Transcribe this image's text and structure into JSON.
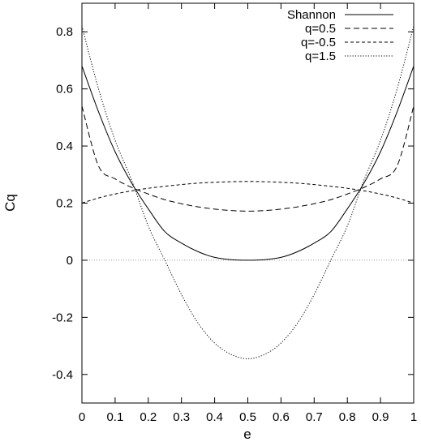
{
  "chart_data": {
    "type": "line",
    "title": "",
    "xlabel": "e",
    "ylabel": "Cq",
    "xlim": [
      0,
      1
    ],
    "ylim": [
      -0.5,
      0.9
    ],
    "xticks": [
      0,
      0.1,
      0.2,
      0.3,
      0.4,
      0.5,
      0.6,
      0.7,
      0.8,
      0.9,
      1
    ],
    "xtick_labels": [
      "0",
      "0.1",
      "0.2",
      "0.3",
      "0.4",
      "0.5",
      "0.6",
      "0.7",
      "0.8",
      "0.9",
      "1"
    ],
    "yticks": [
      -0.4,
      -0.2,
      0,
      0.2,
      0.4,
      0.6,
      0.8
    ],
    "ytick_labels": [
      "-0.4",
      "-0.2",
      "0",
      "0.2",
      "0.4",
      "0.6",
      "0.8"
    ],
    "grid": false,
    "legend_position": "top-right",
    "x": [
      0,
      0.05,
      0.1,
      0.15,
      0.2,
      0.25,
      0.3,
      0.35,
      0.4,
      0.45,
      0.5,
      0.55,
      0.6,
      0.65,
      0.7,
      0.75,
      0.8,
      0.85,
      0.9,
      0.95,
      1
    ],
    "series": [
      {
        "name": "Shannon",
        "style": "solid",
        "color": "#000000",
        "values": [
          0.68,
          0.52,
          0.38,
          0.27,
          0.18,
          0.1,
          0.06,
          0.03,
          0.01,
          0.002,
          0.0,
          0.002,
          0.01,
          0.03,
          0.06,
          0.1,
          0.18,
          0.27,
          0.38,
          0.52,
          0.68
        ]
      },
      {
        "name": "q=0.5",
        "style": "dashed",
        "color": "#000000",
        "values": [
          0.54,
          0.33,
          0.285,
          0.255,
          0.232,
          0.212,
          0.198,
          0.187,
          0.179,
          0.174,
          0.172,
          0.174,
          0.179,
          0.187,
          0.198,
          0.212,
          0.232,
          0.255,
          0.285,
          0.33,
          0.54
        ]
      },
      {
        "name": "q=-0.5",
        "style": "short-dashed",
        "color": "#000000",
        "values": [
          0.2,
          0.218,
          0.232,
          0.243,
          0.252,
          0.259,
          0.265,
          0.27,
          0.273,
          0.275,
          0.276,
          0.275,
          0.273,
          0.27,
          0.265,
          0.259,
          0.252,
          0.243,
          0.232,
          0.218,
          0.2
        ]
      },
      {
        "name": "q=1.5",
        "style": "dotted",
        "color": "#000000",
        "values": [
          0.82,
          0.6,
          0.42,
          0.28,
          0.12,
          0.0,
          -0.12,
          -0.22,
          -0.29,
          -0.33,
          -0.345,
          -0.33,
          -0.29,
          -0.22,
          -0.12,
          0.0,
          0.12,
          0.28,
          0.42,
          0.6,
          0.82
        ]
      }
    ],
    "reference_line": {
      "y": 0,
      "style": "dotted",
      "color": "#999999"
    }
  }
}
